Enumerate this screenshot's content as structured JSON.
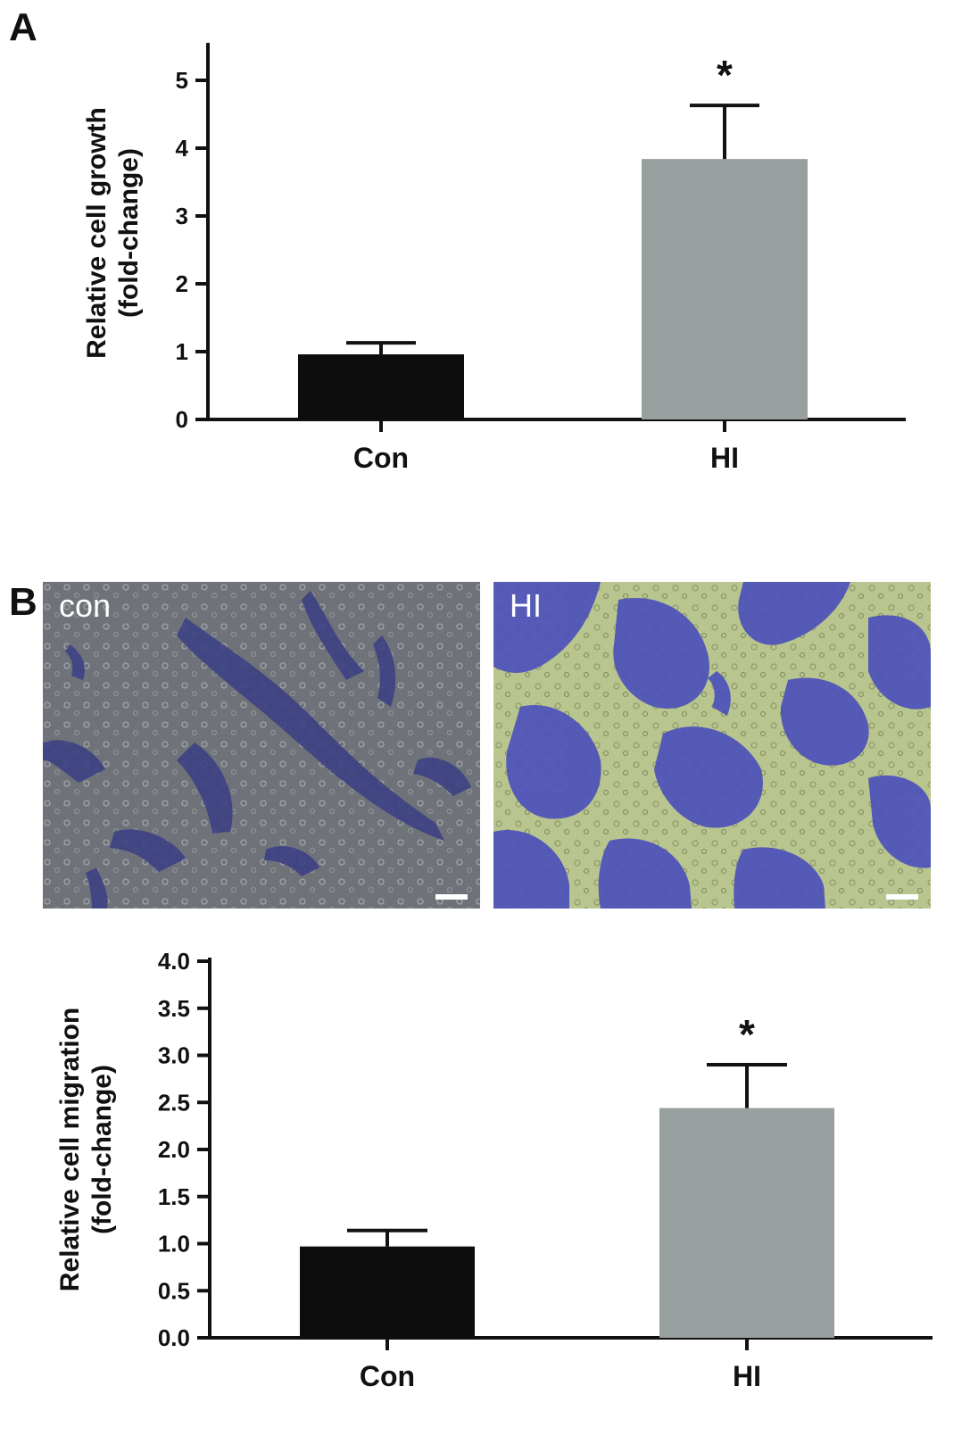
{
  "panels": {
    "a_letter": "A",
    "b_letter": "B"
  },
  "micrographs": [
    {
      "label": "con",
      "colors": {
        "background": "#6f7279",
        "stain": "#3a3f85"
      }
    },
    {
      "label": "HI",
      "colors": {
        "background": "#b8c58e",
        "stain": "#4b4fbb"
      }
    }
  ],
  "chart_data": [
    {
      "type": "bar",
      "categories": [
        "Con",
        "HI"
      ],
      "values": [
        0.96,
        3.84
      ],
      "errors": [
        0.17,
        0.79
      ],
      "significance": [
        "",
        "*"
      ],
      "ylabel_lines": [
        "Relative cell growth",
        "(fold-change)"
      ],
      "ylim": [
        0,
        5.5
      ],
      "yticks": [
        0,
        1,
        2,
        3,
        4,
        5
      ],
      "ytick_labels": [
        "0",
        "1",
        "2",
        "3",
        "4",
        "5"
      ],
      "colors": [
        "#0d0d0d",
        "#98a09f"
      ]
    },
    {
      "type": "bar",
      "categories": [
        "Con",
        "HI"
      ],
      "values": [
        0.97,
        2.44
      ],
      "errors": [
        0.17,
        0.46
      ],
      "significance": [
        "",
        "*"
      ],
      "ylabel_lines": [
        "Relative cell migration",
        "(fold-change)"
      ],
      "ylim": [
        0,
        4.0
      ],
      "yticks": [
        0,
        0.5,
        1.0,
        1.5,
        2.0,
        2.5,
        3.0,
        3.5,
        4.0
      ],
      "ytick_labels": [
        "0.0",
        "0.5",
        "1.0",
        "1.5",
        "2.0",
        "2.5",
        "3.0",
        "3.5",
        "4.0"
      ],
      "colors": [
        "#0d0d0d",
        "#98a09f"
      ]
    }
  ]
}
